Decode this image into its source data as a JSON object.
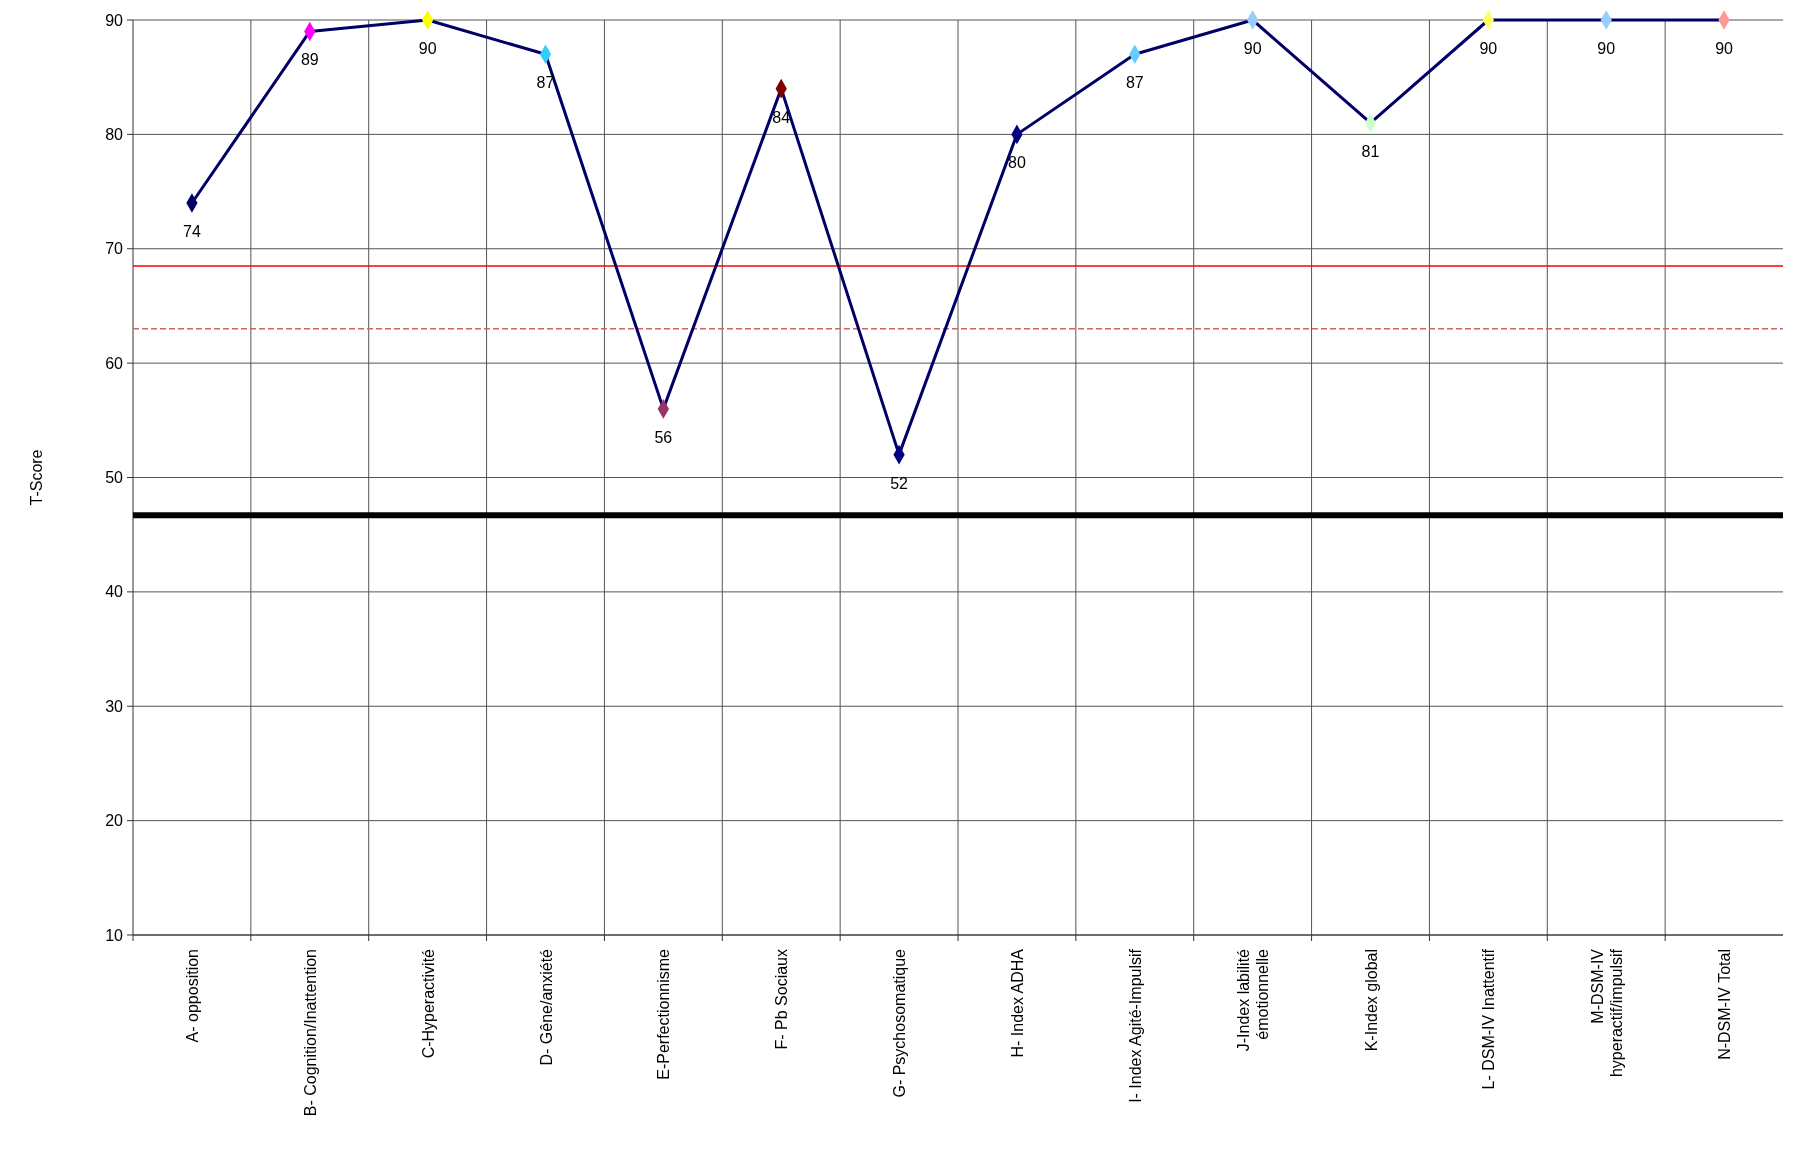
{
  "chart_data": {
    "type": "line",
    "ylabel": "T-Score",
    "categories": [
      "A- opposition",
      "B- Cognition/Inattention",
      "C-Hyperactivité",
      "D- Gêne/anxiété",
      "E-Perfectionnisme",
      "F- Pb Sociaux",
      "G- Psychosomatique",
      "H- Index ADHA",
      "I- Index Agité-Impulsif",
      "J-Index labilité\némotionnelle",
      "K-Index global",
      "L- DSM-IV Inattentif",
      "M-DSM-IV\nhyperactif/impulsif",
      "N-DSM-IV Total"
    ],
    "series": [
      {
        "color": "#000066",
        "values": [
          74,
          89,
          90,
          87,
          56,
          84,
          52,
          80,
          87,
          90,
          81,
          90,
          90,
          90
        ],
        "colors": [
          "#000066",
          "#ff00ff",
          "#ffff00",
          "#33ccff",
          "#993366",
          "#800000",
          "#000080",
          "#000080",
          "#66ccff",
          "#99ccff",
          "#ccffcc",
          "#ffff66",
          "#99ccff",
          "#ff9999"
        ]
      }
    ],
    "ylim": [
      10,
      90
    ],
    "yticks": [
      10,
      20,
      30,
      40,
      50,
      60,
      70,
      80,
      90
    ],
    "ref_lines": [
      {
        "axis": "y",
        "value": 68.5,
        "color": "#ff0000",
        "line_style": "solid"
      },
      {
        "axis": "y",
        "value": 63,
        "color": "#cc6666",
        "line_style": "dashed"
      },
      {
        "axis": "y",
        "value": 46.7,
        "color": "#000000",
        "line_style": "solid"
      }
    ],
    "grid": true,
    "marker": "diamond",
    "data_labels": true,
    "line_style": "solid"
  }
}
